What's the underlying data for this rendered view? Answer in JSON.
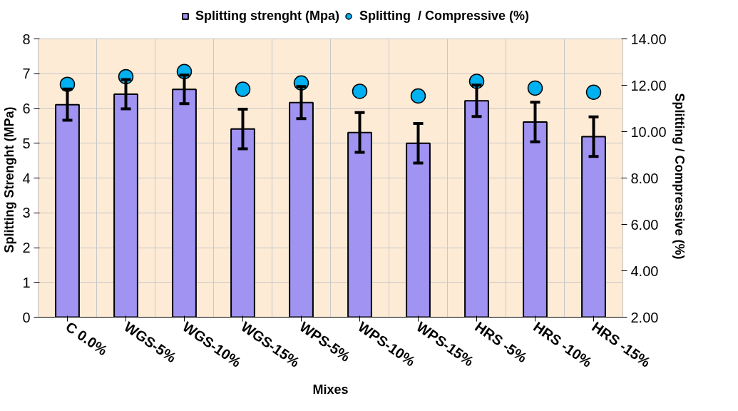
{
  "chart_data": {
    "type": "bar",
    "xlabel": "Mixes",
    "ylabel": "Splitting  Strenght (MPa)",
    "y2label": "Splitting  / Compressive (%)",
    "categories": [
      "C 0.0%",
      "WGS-5%",
      "WGS-10%",
      "WGS-15%",
      "WPS-5%",
      "WPS-10%",
      "WPS-15%",
      "HRS -5%",
      "HRS -10%",
      "HRS -15%"
    ],
    "series": [
      {
        "name": "Splitting strenght (Mpa)",
        "color": "#a093f2",
        "values": [
          6.11,
          6.41,
          6.55,
          5.41,
          6.17,
          5.31,
          5.0,
          6.22,
          5.61,
          5.19
        ],
        "errors": [
          0.45,
          0.42,
          0.41,
          0.57,
          0.46,
          0.57,
          0.57,
          0.45,
          0.57,
          0.57
        ]
      },
      {
        "name": "Splitting  / Compressive (%)",
        "type": "scatter",
        "axis": "y2",
        "marker": "circle",
        "color": "#00b0f0",
        "values": [
          12.04,
          12.37,
          12.59,
          11.83,
          12.1,
          11.74,
          11.54,
          12.17,
          11.88,
          11.7
        ]
      }
    ],
    "ylim": [
      0,
      8
    ],
    "yticks": [
      0,
      1,
      2,
      3,
      4,
      5,
      6,
      7,
      8
    ],
    "y2lim": [
      2,
      14
    ],
    "y2ticks": [
      {
        "value": 2,
        "label": "2.00"
      },
      {
        "value": 4,
        "label": "4.00"
      },
      {
        "value": 6,
        "label": "6.00"
      },
      {
        "value": 8,
        "label": "8.00"
      },
      {
        "value": 10,
        "label": "10.00"
      },
      {
        "value": 12,
        "label": "12.00"
      },
      {
        "value": 14,
        "label": "14.00"
      }
    ],
    "grid": true,
    "legend": "top"
  }
}
